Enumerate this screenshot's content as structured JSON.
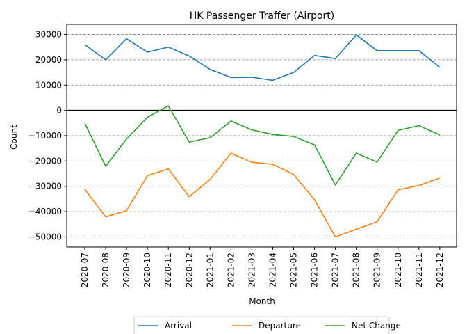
{
  "chart_data": {
    "type": "line",
    "title": "HK Passenger Traffer (Airport)",
    "xlabel": "Month",
    "ylabel": "Count",
    "ylim": [
      -54000,
      34000
    ],
    "yticks": [
      -50000,
      -40000,
      -30000,
      -20000,
      -10000,
      0,
      10000,
      20000,
      30000
    ],
    "grid": "horizontal dashed",
    "zero_line": true,
    "legend_position": "bottom-center",
    "categories": [
      "2020-07",
      "2020-08",
      "2020-09",
      "2020-10",
      "2020-11",
      "2020-12",
      "2021-01",
      "2021-02",
      "2021-03",
      "2021-04",
      "2021-05",
      "2021-06",
      "2021-07",
      "2021-08",
      "2021-09",
      "2021-10",
      "2021-11",
      "2021-12"
    ],
    "series": [
      {
        "name": "Arrival",
        "color": "#1f77b4",
        "values": [
          26000,
          20000,
          28300,
          23000,
          25000,
          21500,
          16200,
          13000,
          13100,
          11900,
          15000,
          21700,
          20500,
          29800,
          23600,
          23600,
          23600,
          17000
        ]
      },
      {
        "name": "Departure",
        "color": "#ff7f0e",
        "values": [
          -31200,
          -42100,
          -39600,
          -25800,
          -23100,
          -34100,
          -27300,
          -16900,
          -20500,
          -21300,
          -25300,
          -35300,
          -50000,
          -47000,
          -44000,
          -31400,
          -29700,
          -26700
        ]
      },
      {
        "name": "Net Change",
        "color": "#2ca02c",
        "values": [
          -5100,
          -22100,
          -11300,
          -2700,
          1800,
          -12500,
          -10800,
          -4200,
          -7700,
          -9500,
          -10300,
          -13600,
          -29500,
          -16900,
          -20400,
          -7900,
          -6000,
          -9700
        ]
      }
    ]
  }
}
